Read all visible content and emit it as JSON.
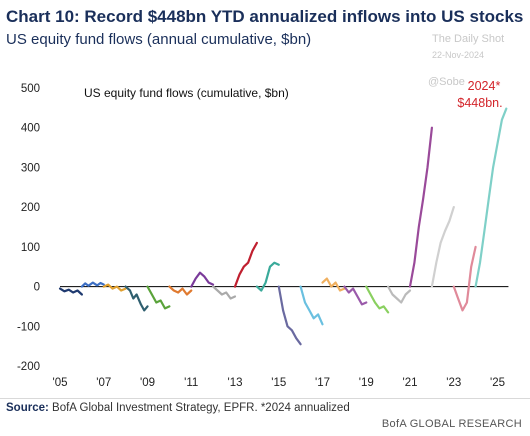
{
  "header": {
    "title": "Chart 10: Record $448bn YTD annualized inflows into US stocks",
    "subtitle": "US equity fund flows (annual cumulative, $bn)"
  },
  "watermark": {
    "line1": "The Daily Shot",
    "line2": "22-Nov-2024",
    "handle": "@Sobe"
  },
  "footer": {
    "source_label": "Source:",
    "source_text": "BofA Global Investment Strategy, EPFR. *2024 annualized",
    "brand": "BofA GLOBAL RESEARCH"
  },
  "chart_data": {
    "type": "line",
    "title": "US equity fund flows (cumulative, $bn)",
    "xlabel": "",
    "ylabel": "",
    "xlim": [
      2005,
      2025.8
    ],
    "ylim": [
      -200,
      500
    ],
    "x_ticks": [
      "'05",
      "'07",
      "'09",
      "'11",
      "'13",
      "'15",
      "'17",
      "'19",
      "'21",
      "'23",
      "'25"
    ],
    "y_ticks": [
      "-200",
      "-100",
      "0",
      "100",
      "200",
      "300",
      "400",
      "500"
    ],
    "grid": false,
    "legend": "none",
    "zero_line": true,
    "annotation": {
      "line1": "2024*",
      "line2": "$448bn.",
      "color": "#d3242a"
    },
    "series": [
      {
        "year": 2005,
        "color": "#1f3a70",
        "points": [
          [
            2005.0,
            -5
          ],
          [
            2005.2,
            -12
          ],
          [
            2005.4,
            -8
          ],
          [
            2005.6,
            -15
          ],
          [
            2005.8,
            -10
          ],
          [
            2006.0,
            -20
          ]
        ]
      },
      {
        "year": 2006,
        "color": "#3d6fc4",
        "points": [
          [
            2006.0,
            0
          ],
          [
            2006.15,
            8
          ],
          [
            2006.3,
            2
          ],
          [
            2006.5,
            10
          ],
          [
            2006.7,
            3
          ],
          [
            2006.85,
            9
          ],
          [
            2007.0,
            5
          ]
        ]
      },
      {
        "year": 2007,
        "color": "#e0a030",
        "points": [
          [
            2007.0,
            0
          ],
          [
            2007.2,
            5
          ],
          [
            2007.4,
            -5
          ],
          [
            2007.6,
            0
          ],
          [
            2007.8,
            -10
          ],
          [
            2008.0,
            -5
          ]
        ]
      },
      {
        "year": 2008,
        "color": "#2f5f6f",
        "points": [
          [
            2008.0,
            0
          ],
          [
            2008.2,
            -10
          ],
          [
            2008.35,
            -30
          ],
          [
            2008.5,
            -20
          ],
          [
            2008.7,
            -45
          ],
          [
            2008.85,
            -60
          ],
          [
            2009.0,
            -50
          ]
        ]
      },
      {
        "year": 2009,
        "color": "#5aa33a",
        "points": [
          [
            2009.0,
            0
          ],
          [
            2009.2,
            -20
          ],
          [
            2009.4,
            -40
          ],
          [
            2009.6,
            -35
          ],
          [
            2009.8,
            -55
          ],
          [
            2010.0,
            -50
          ]
        ]
      },
      {
        "year": 2010,
        "color": "#e07a30",
        "points": [
          [
            2010.0,
            0
          ],
          [
            2010.2,
            -10
          ],
          [
            2010.4,
            -15
          ],
          [
            2010.6,
            -5
          ],
          [
            2010.8,
            -20
          ],
          [
            2011.0,
            -10
          ]
        ]
      },
      {
        "year": 2011,
        "color": "#7a3a9a",
        "points": [
          [
            2011.0,
            0
          ],
          [
            2011.2,
            20
          ],
          [
            2011.4,
            35
          ],
          [
            2011.6,
            25
          ],
          [
            2011.8,
            10
          ],
          [
            2012.0,
            5
          ]
        ]
      },
      {
        "year": 2012,
        "color": "#aaaaaa",
        "points": [
          [
            2012.0,
            0
          ],
          [
            2012.2,
            -10
          ],
          [
            2012.4,
            -20
          ],
          [
            2012.6,
            -15
          ],
          [
            2012.8,
            -30
          ],
          [
            2013.0,
            -25
          ]
        ]
      },
      {
        "year": 2013,
        "color": "#c01f2f",
        "points": [
          [
            2013.0,
            0
          ],
          [
            2013.2,
            30
          ],
          [
            2013.4,
            50
          ],
          [
            2013.6,
            60
          ],
          [
            2013.8,
            90
          ],
          [
            2014.0,
            110
          ]
        ]
      },
      {
        "year": 2014,
        "color": "#3aaa9a",
        "points": [
          [
            2014.0,
            0
          ],
          [
            2014.2,
            -10
          ],
          [
            2014.4,
            10
          ],
          [
            2014.6,
            50
          ],
          [
            2014.8,
            60
          ],
          [
            2015.0,
            55
          ]
        ]
      },
      {
        "year": 2015,
        "color": "#6a6aa0",
        "points": [
          [
            2015.0,
            0
          ],
          [
            2015.2,
            -60
          ],
          [
            2015.4,
            -100
          ],
          [
            2015.6,
            -110
          ],
          [
            2015.8,
            -130
          ],
          [
            2016.0,
            -145
          ]
        ]
      },
      {
        "year": 2016,
        "color": "#6ac0e0",
        "points": [
          [
            2016.0,
            0
          ],
          [
            2016.2,
            -40
          ],
          [
            2016.4,
            -60
          ],
          [
            2016.6,
            -80
          ],
          [
            2016.8,
            -70
          ],
          [
            2017.0,
            -95
          ]
        ]
      },
      {
        "year": 2017,
        "color": "#f0b060",
        "points": [
          [
            2017.0,
            10
          ],
          [
            2017.2,
            20
          ],
          [
            2017.4,
            0
          ],
          [
            2017.6,
            10
          ],
          [
            2017.8,
            -10
          ],
          [
            2018.0,
            -5
          ]
        ]
      },
      {
        "year": 2018,
        "color": "#9a5aaa",
        "points": [
          [
            2018.0,
            0
          ],
          [
            2018.2,
            -15
          ],
          [
            2018.4,
            -5
          ],
          [
            2018.6,
            -25
          ],
          [
            2018.8,
            -45
          ],
          [
            2019.0,
            -40
          ]
        ]
      },
      {
        "year": 2019,
        "color": "#8ad060",
        "points": [
          [
            2019.0,
            0
          ],
          [
            2019.2,
            -20
          ],
          [
            2019.4,
            -40
          ],
          [
            2019.6,
            -55
          ],
          [
            2019.8,
            -50
          ],
          [
            2020.0,
            -65
          ]
        ]
      },
      {
        "year": 2020,
        "color": "#bbbbbb",
        "points": [
          [
            2020.0,
            0
          ],
          [
            2020.2,
            -20
          ],
          [
            2020.4,
            -30
          ],
          [
            2020.6,
            -40
          ],
          [
            2020.8,
            -20
          ],
          [
            2021.0,
            -10
          ]
        ]
      },
      {
        "year": 2021,
        "color": "#9a4a9a",
        "points": [
          [
            2021.0,
            0
          ],
          [
            2021.2,
            60
          ],
          [
            2021.4,
            150
          ],
          [
            2021.6,
            220
          ],
          [
            2021.8,
            300
          ],
          [
            2022.0,
            400
          ]
        ]
      },
      {
        "year": 2022,
        "color": "#d0d0d0",
        "points": [
          [
            2022.0,
            0
          ],
          [
            2022.2,
            60
          ],
          [
            2022.4,
            110
          ],
          [
            2022.6,
            140
          ],
          [
            2022.8,
            165
          ],
          [
            2023.0,
            200
          ]
        ]
      },
      {
        "year": 2023,
        "color": "#e08a9a",
        "points": [
          [
            2023.0,
            0
          ],
          [
            2023.2,
            -30
          ],
          [
            2023.4,
            -60
          ],
          [
            2023.6,
            -40
          ],
          [
            2023.8,
            50
          ],
          [
            2024.0,
            100
          ]
        ]
      },
      {
        "year": 2024,
        "color": "#7fd0c8",
        "points": [
          [
            2024.0,
            0
          ],
          [
            2024.2,
            60
          ],
          [
            2024.4,
            140
          ],
          [
            2024.6,
            220
          ],
          [
            2024.8,
            300
          ],
          [
            2025.0,
            360
          ],
          [
            2025.2,
            420
          ],
          [
            2025.4,
            448
          ]
        ]
      }
    ]
  }
}
